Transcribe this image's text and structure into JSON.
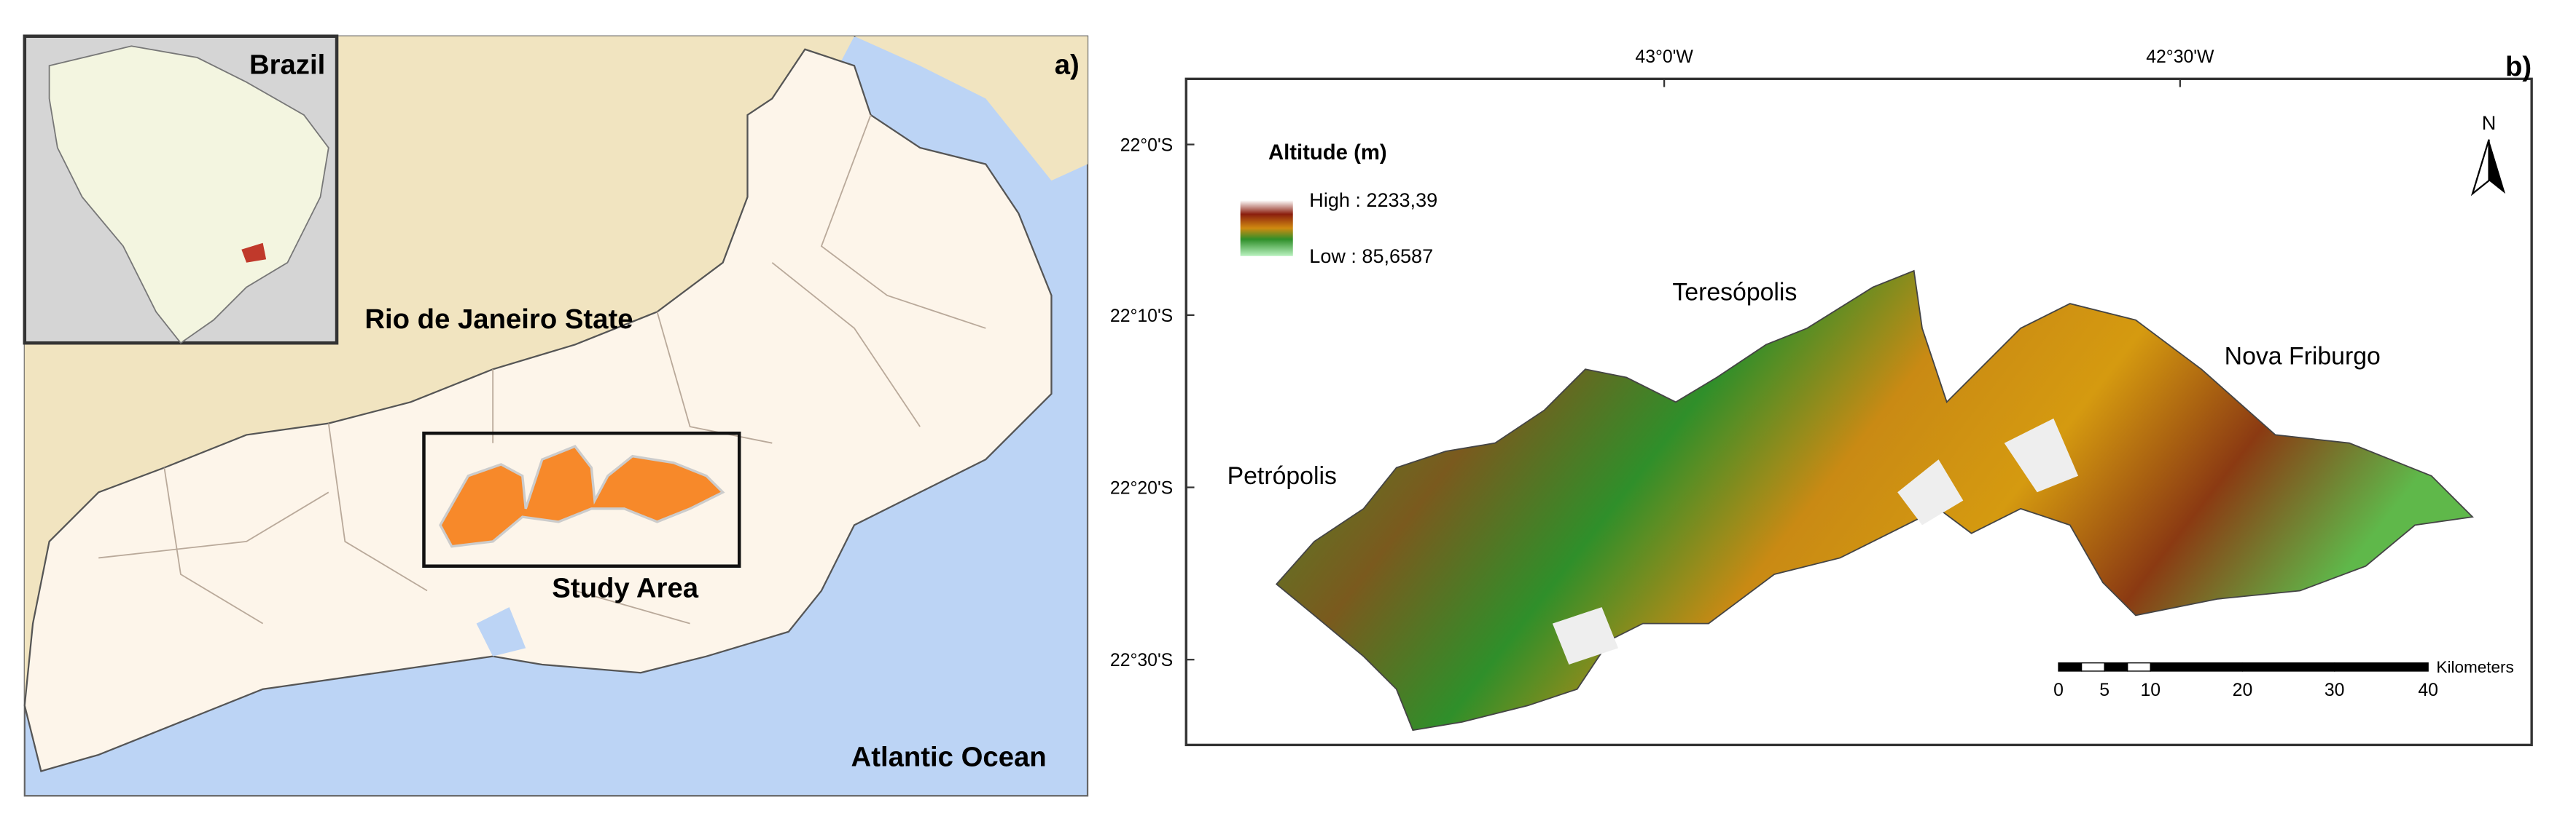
{
  "panel_a": {
    "label": "a)",
    "inset_title": "Brazil",
    "state_label": "Rio de Janeiro State",
    "study_area_label": "Study Area",
    "ocean_label": "Atlantic Ocean"
  },
  "panel_b": {
    "label": "b)",
    "longitude_labels": [
      "43°0'W",
      "42°30'W"
    ],
    "latitude_labels": [
      "22°0'S",
      "22°10'S",
      "22°20'S",
      "22°30'S"
    ],
    "legend": {
      "title": "Altitude (m)",
      "high": "High : 2233,39",
      "low": "Low : 85,6587"
    },
    "north_arrow": "N",
    "cities": [
      "Petrópolis",
      "Teresópolis",
      "Nova Friburgo"
    ],
    "scale_bar": {
      "labels": [
        "0",
        "5",
        "10",
        "20",
        "30",
        "40"
      ],
      "unit": "Kilometers"
    }
  }
}
